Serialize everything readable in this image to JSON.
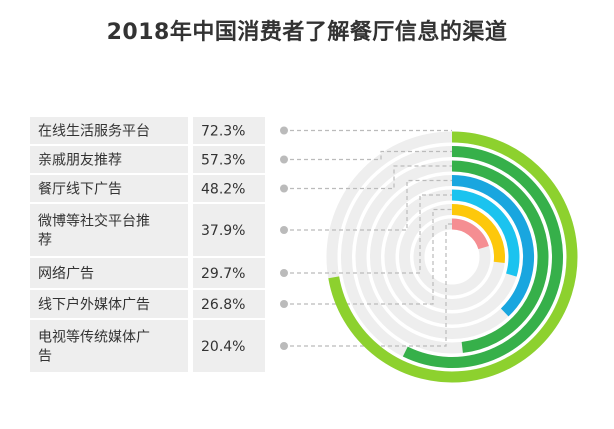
{
  "chart_data": {
    "type": "radial-bar",
    "title": "2018年中国消费者了解餐厅信息的渠道",
    "max_value": 100,
    "categories": [
      {
        "label_lines": [
          "在线生活服务平台"
        ],
        "value": 72.3,
        "value_label": "72.3%",
        "color": "#8dd12e"
      },
      {
        "label_lines": [
          "亲戚朋友推荐"
        ],
        "value": 57.3,
        "value_label": "57.3%",
        "color": "#36b04a"
      },
      {
        "label_lines": [
          "餐厅线下广告"
        ],
        "value": 48.2,
        "value_label": "48.2%",
        "color": "#36b04a"
      },
      {
        "label_lines": [
          "微博等社交平台推",
          "荐"
        ],
        "value": 37.9,
        "value_label": "37.9%",
        "color": "#19a6df"
      },
      {
        "label_lines": [
          "网络广告"
        ],
        "value": 29.7,
        "value_label": "29.7%",
        "color": "#1bc3ef"
      },
      {
        "label_lines": [
          "线下户外媒体广告"
        ],
        "value": 26.8,
        "value_label": "26.8%",
        "color": "#fdc80b"
      },
      {
        "label_lines": [
          "电视等传统媒体广",
          "告"
        ],
        "value": 20.4,
        "value_label": "20.4%",
        "color": "#f58e92"
      }
    ],
    "track_color": "#eeeeee",
    "label_bg_color": "#eeeeee",
    "leader_color": "#bbbbbb"
  }
}
